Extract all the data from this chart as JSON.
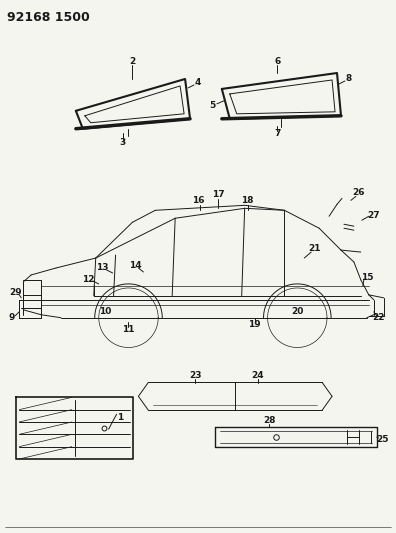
{
  "title": "92168 1500",
  "bg_color": "#f5f5f0",
  "line_color": "#1a1a1a",
  "title_fontsize": 9,
  "label_fontsize": 6.5,
  "fig_width": 3.96,
  "fig_height": 5.33
}
